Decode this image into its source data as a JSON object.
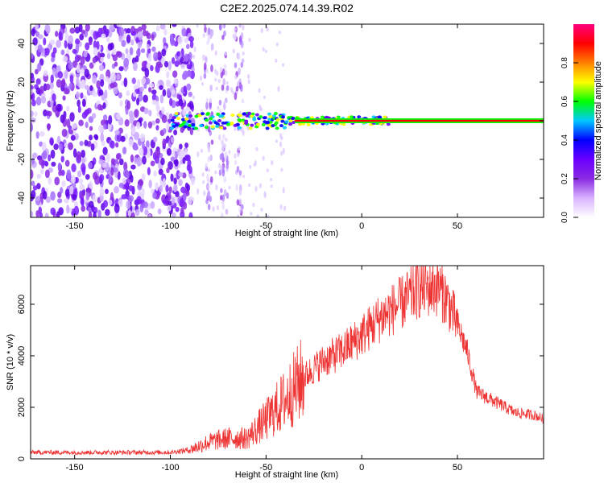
{
  "figure": {
    "title": "C2E2.2025.074.14.39.R02"
  },
  "chart_data": [
    {
      "type": "heatmap",
      "xlabel": "Height of straight line (km)",
      "ylabel": "Frequency (Hz)",
      "xlim": [
        -173,
        95
      ],
      "ylim": [
        -50,
        50
      ],
      "xticks": [
        -150,
        -100,
        -50,
        0,
        50
      ],
      "yticks": [
        -40,
        -20,
        0,
        20,
        40
      ],
      "colorbar": {
        "label": "Normalized spectral amplitude",
        "range": [
          0,
          1
        ],
        "ticks": [
          0.0,
          0.2,
          0.4,
          0.6,
          0.8
        ],
        "tick_labels": [
          "0.0",
          "0.2",
          "0.4",
          "0.6",
          "0.8"
        ],
        "colors": [
          "#ffffff",
          "#d9b3ff",
          "#8a2be2",
          "#6a00ff",
          "#0000ff",
          "#00c8ff",
          "#00ff00",
          "#ffff00",
          "#ff8000",
          "#ff0000",
          "#ff0080"
        ]
      },
      "features": {
        "noise_region_x": [
          -173,
          -88
        ],
        "noise_stripes_x": [
          -80,
          -72,
          -64
        ],
        "signal_line_freq": 0,
        "signal_start_x": -100,
        "strong_line_start_x": -35
      }
    },
    {
      "type": "line",
      "xlabel": "Height of straight line (km)",
      "ylabel": "SNR (10 * v/v)",
      "xlim": [
        -173,
        95
      ],
      "ylim": [
        0,
        7500
      ],
      "xticks": [
        -150,
        -100,
        -50,
        0,
        50
      ],
      "yticks": [
        0,
        2000,
        4000,
        6000
      ],
      "color": "#ee3333",
      "envelope": {
        "x": [
          -173,
          -100,
          -90,
          -80,
          -70,
          -60,
          -50,
          -40,
          -30,
          -20,
          -10,
          0,
          10,
          20,
          30,
          40,
          45,
          50,
          55,
          60,
          70,
          80,
          90,
          95
        ],
        "y": [
          250,
          250,
          350,
          650,
          800,
          800,
          1500,
          2300,
          3200,
          3800,
          4200,
          4800,
          5500,
          6000,
          6600,
          6700,
          6100,
          5200,
          4200,
          2600,
          2200,
          1800,
          1700,
          1550
        ]
      }
    }
  ]
}
